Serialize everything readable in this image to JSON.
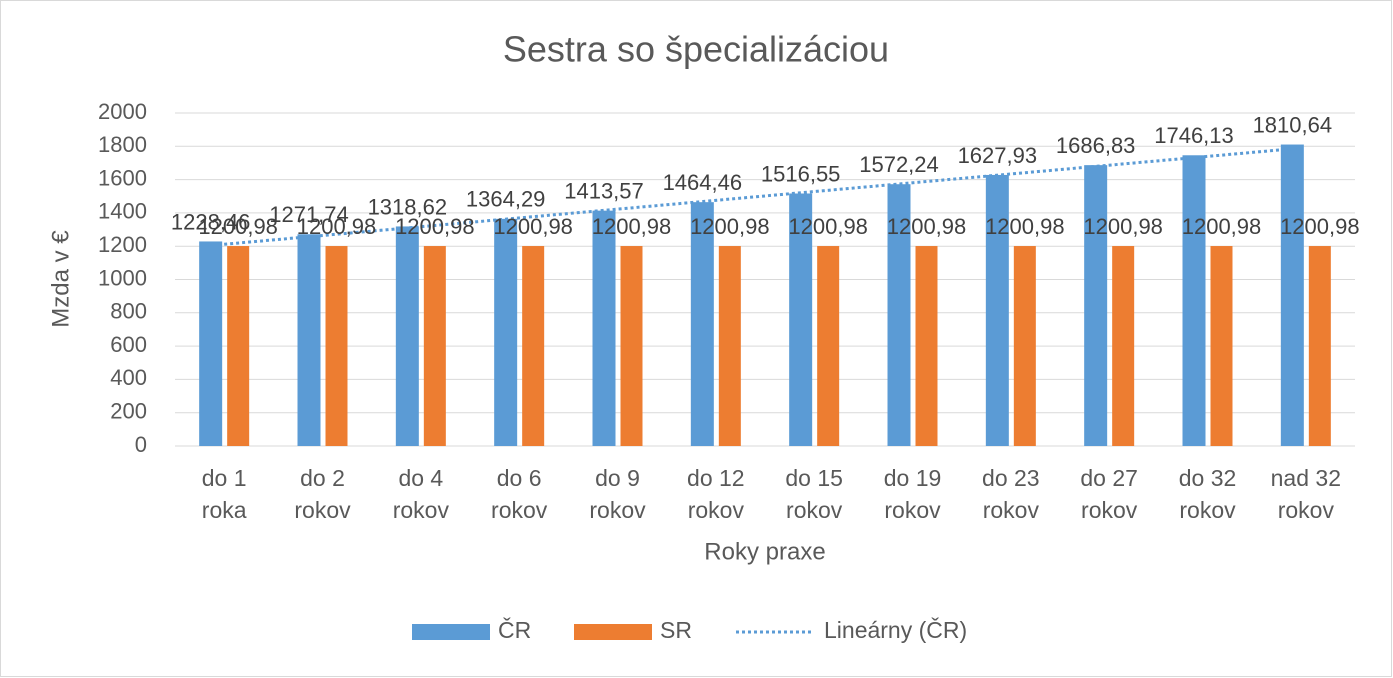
{
  "chart_data": {
    "type": "bar",
    "title": "Sestra so špecializáciou",
    "x_label": "Roky praxe",
    "y_label": "Mzda v €",
    "categories": [
      "do 1 roka",
      "do 2 rokov",
      "do 4 rokov",
      "do 6 rokov",
      "do 9 rokov",
      "do 12 rokov",
      "do 15 rokov",
      "do 19 rokov",
      "do 23 rokov",
      "do 27 rokov",
      "do 32 rokov",
      "nad 32 rokov"
    ],
    "series": [
      {
        "name": "ČR",
        "color": "#5b9bd5",
        "values": [
          1228.46,
          1271.74,
          1318.62,
          1364.29,
          1413.57,
          1464.46,
          1516.55,
          1572.24,
          1627.93,
          1686.83,
          1746.13,
          1810.64
        ],
        "value_labels": [
          "1228,46",
          "1271,74",
          "1318,62",
          "1364,29",
          "1413,57",
          "1464,46",
          "1516,55",
          "1572,24",
          "1627,93",
          "1686,83",
          "1746,13",
          "1810,64"
        ]
      },
      {
        "name": "SR",
        "color": "#ed7d31",
        "values": [
          1200.98,
          1200.98,
          1200.98,
          1200.98,
          1200.98,
          1200.98,
          1200.98,
          1200.98,
          1200.98,
          1200.98,
          1200.98,
          1200.98
        ],
        "value_labels": [
          "1200,98",
          "1200,98",
          "1200,98",
          "1200,98",
          "1200,98",
          "1200,98",
          "1200,98",
          "1200,98",
          "1200,98",
          "1200,98",
          "1200,98",
          "1200,98"
        ]
      }
    ],
    "trendline": {
      "name": "Lineárny (ČR)",
      "color": "#5b9bd5"
    },
    "ylim": [
      0,
      2000
    ],
    "yticks": [
      0,
      200,
      400,
      600,
      800,
      1000,
      1200,
      1400,
      1600,
      1800,
      2000
    ],
    "grid": true
  }
}
